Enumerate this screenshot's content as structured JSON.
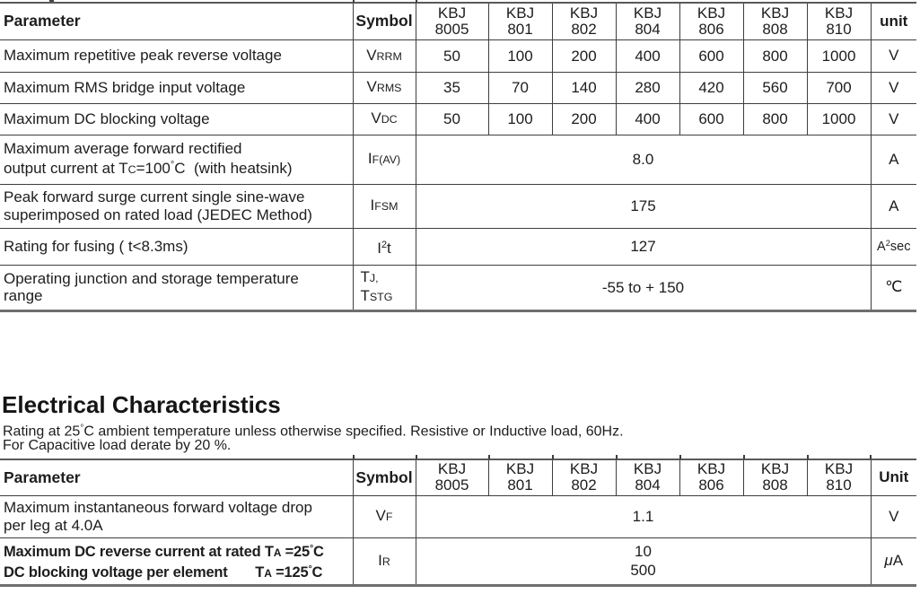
{
  "section": {
    "title": "Electrical Characteristics",
    "notes": [
      [
        "Rating at 25",
        [
          "°",
          "sup"
        ],
        "C ambient temperature unless otherwise specified. Resistive or Inductive load, 60Hz."
      ],
      [
        "For Capacitive load derate by 20 %."
      ]
    ]
  },
  "tables": [
    {
      "id": "maximum-ratings",
      "header": {
        "parameter": "Parameter",
        "symbol": "Symbol",
        "devices": [
          [
            "KBJ",
            "8005"
          ],
          [
            "KBJ",
            "801"
          ],
          [
            "KBJ",
            "802"
          ],
          [
            "KBJ",
            "804"
          ],
          [
            "KBJ",
            "806"
          ],
          [
            "KBJ",
            "808"
          ],
          [
            "KBJ",
            "810"
          ]
        ],
        "unit": "unit"
      },
      "rows": [
        {
          "param": [
            [
              "Maximum repetitive peak reverse voltage"
            ]
          ],
          "symbol": [
            [
              "V",
              [
                "RRM",
                "sub"
              ]
            ]
          ],
          "values": [
            "50",
            "100",
            "200",
            "400",
            "600",
            "800",
            "1000"
          ],
          "unit": [
            "V"
          ]
        },
        {
          "param": [
            [
              "Maximum RMS bridge input voltage"
            ]
          ],
          "symbol": [
            [
              "V",
              [
                "RMS",
                "sub"
              ]
            ]
          ],
          "values": [
            "35",
            "70",
            "140",
            "280",
            "420",
            "560",
            "700"
          ],
          "unit": [
            "V"
          ]
        },
        {
          "param": [
            [
              "Maximum DC blocking voltage"
            ]
          ],
          "symbol": [
            [
              "V",
              [
                "DC",
                "sub"
              ]
            ]
          ],
          "values": [
            "50",
            "100",
            "200",
            "400",
            "600",
            "800",
            "1000"
          ],
          "unit": [
            "V"
          ]
        },
        {
          "param": [
            [
              "Maximum average forward rectified"
            ],
            [
              "output current at T",
              [
                "C",
                "sub"
              ],
              "=100",
              [
                "°",
                "sup"
              ],
              "C  (with heatsink)"
            ]
          ],
          "symbol": [
            [
              "I",
              [
                "F(AV)",
                "sub"
              ]
            ]
          ],
          "merged": [
            [
              "8.0"
            ]
          ],
          "unit": [
            "A"
          ]
        },
        {
          "param": [
            [
              "Peak forward surge current single sine-wave"
            ],
            [
              "superimposed on rated load (JEDEC Method)"
            ]
          ],
          "symbol": [
            [
              "I",
              [
                "FSM",
                "sub"
              ]
            ]
          ],
          "merged": [
            [
              "175"
            ]
          ],
          "unit": [
            "A"
          ]
        },
        {
          "param": [
            [
              "Rating for fusing ( t<8.3ms)"
            ]
          ],
          "symbol": [
            [
              "I",
              [
                "2",
                "sup"
              ],
              "t"
            ]
          ],
          "merged": [
            [
              "127"
            ]
          ],
          "unit": [
            "A",
            [
              "2",
              "sup"
            ],
            "sec"
          ]
        },
        {
          "param": [
            [
              "Operating junction and storage temperature"
            ],
            [
              "range"
            ]
          ],
          "symbol": [
            [
              "T",
              [
                "J,",
                "sub"
              ]
            ],
            [
              "T",
              [
                "STG",
                "sub"
              ]
            ]
          ],
          "merged": [
            [
              "-55 to + 150"
            ]
          ],
          "unit": [
            "℃"
          ]
        }
      ]
    },
    {
      "id": "electrical-characteristics",
      "header": {
        "parameter": "Parameter",
        "symbol": "Symbol",
        "devices": [
          [
            "KBJ",
            "8005"
          ],
          [
            "KBJ",
            "801"
          ],
          [
            "KBJ",
            "802"
          ],
          [
            "KBJ",
            "804"
          ],
          [
            "KBJ",
            "806"
          ],
          [
            "KBJ",
            "808"
          ],
          [
            "KBJ",
            "810"
          ]
        ],
        "unit": "Unit"
      },
      "rows": [
        {
          "param": [
            [
              "Maximum instantaneous forward voltage drop"
            ],
            [
              "per leg at 4.0A"
            ]
          ],
          "symbol": [
            [
              "V",
              [
                "F",
                "sub"
              ]
            ]
          ],
          "merged": [
            [
              "1.1"
            ]
          ],
          "unit": [
            "V"
          ]
        },
        {
          "bold": true,
          "param": [
            [
              "Maximum DC reverse current at rated T",
              [
                "A",
                "sub"
              ],
              " =25",
              [
                "°",
                "sup"
              ],
              "C"
            ],
            [
              "DC blocking voltage per element       T",
              [
                "A",
                "sub"
              ],
              " =125",
              [
                "°",
                "sup"
              ],
              "C"
            ]
          ],
          "symbol": [
            [
              "I",
              [
                "R",
                "sub"
              ]
            ]
          ],
          "merged": [
            [
              "10"
            ],
            [
              "500"
            ]
          ],
          "unit": [
            [
              "μ",
              "it"
            ],
            "A"
          ]
        }
      ]
    }
  ]
}
